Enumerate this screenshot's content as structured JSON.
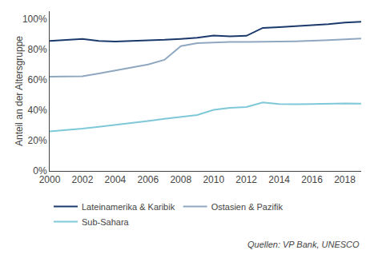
{
  "chart_data": {
    "type": "line",
    "ylabel": "Anteil an der Altersgruppe",
    "annotations": [
      "Quellen: VP Bank, UNESCO"
    ],
    "x": [
      2000,
      2001,
      2002,
      2003,
      2004,
      2005,
      2006,
      2007,
      2008,
      2009,
      2010,
      2011,
      2012,
      2013,
      2014,
      2015,
      2016,
      2017,
      2018,
      2019
    ],
    "series": [
      {
        "name": "Lateinamerika & Karibik",
        "color": "#1b3a6b",
        "values": [
          0.855,
          0.862,
          0.868,
          0.855,
          0.85,
          0.855,
          0.858,
          0.862,
          0.868,
          0.876,
          0.89,
          0.885,
          0.888,
          0.94,
          0.945,
          0.95,
          0.958,
          0.965,
          0.975,
          0.98
        ]
      },
      {
        "name": "Ostasien & Pazifik",
        "color": "#8fa8c0",
        "values": [
          0.62,
          0.622,
          0.622,
          0.64,
          0.66,
          0.68,
          0.7,
          0.73,
          0.82,
          0.84,
          0.845,
          0.848,
          0.848,
          0.848,
          0.85,
          0.852,
          0.855,
          0.86,
          0.865,
          0.87
        ]
      },
      {
        "name": "Sub-Sahara",
        "color": "#7ec8d8",
        "values": [
          0.26,
          0.268,
          0.278,
          0.29,
          0.302,
          0.315,
          0.328,
          0.342,
          0.355,
          0.368,
          0.402,
          0.415,
          0.42,
          0.45,
          0.44,
          0.438,
          0.44,
          0.442,
          0.443,
          0.442
        ]
      }
    ],
    "xlim": [
      2000,
      2019
    ],
    "xticks": [
      2000,
      2002,
      2004,
      2006,
      2008,
      2010,
      2012,
      2014,
      2016,
      2018
    ],
    "ylim": [
      0,
      1.05
    ],
    "yticks": [
      {
        "value": 0.0,
        "label": "0%"
      },
      {
        "value": 0.2,
        "label": "20%"
      },
      {
        "value": 0.4,
        "label": "40%"
      },
      {
        "value": 0.6,
        "label": "60%"
      },
      {
        "value": 0.8,
        "label": "80%"
      },
      {
        "value": 1.0,
        "label": "100%"
      }
    ],
    "grid": false,
    "legend": "bottom"
  }
}
